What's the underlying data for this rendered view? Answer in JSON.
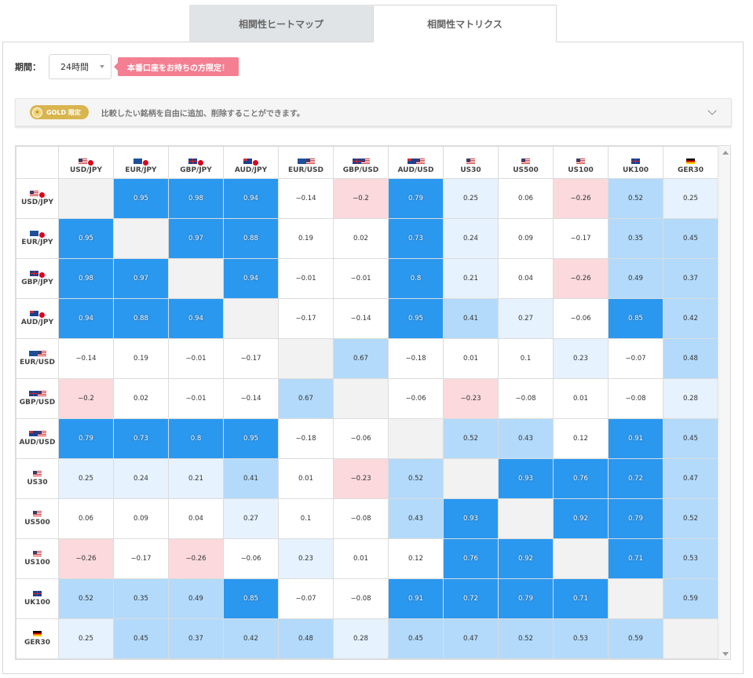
{
  "tabs": [
    {
      "label": "相関性ヒートマップ",
      "active": false
    },
    {
      "label": "相関性マトリクス",
      "active": true
    }
  ],
  "period": {
    "label": "期間：",
    "value": "24時間"
  },
  "live_badge": "本番口座をお持ちの方限定！",
  "gold_bar": {
    "badge": "GOLD 限定",
    "text": "比較したい銘柄を自由に追加、削除することができます。"
  },
  "colors": {
    "strong": "#2b98f0",
    "mid": "#b3dafb",
    "light": "#e6f2fd",
    "negative": "#fbd9dc",
    "diagonal": "#f2f2f2"
  },
  "instruments": [
    {
      "label": "USD/JPY",
      "flag": "us-jp"
    },
    {
      "label": "EUR/JPY",
      "flag": "eu-jp"
    },
    {
      "label": "GBP/JPY",
      "flag": "uk-jp"
    },
    {
      "label": "AUD/JPY",
      "flag": "au-jp"
    },
    {
      "label": "EUR/USD",
      "flag": "eu-us"
    },
    {
      "label": "GBP/USD",
      "flag": "uk-us"
    },
    {
      "label": "AUD/USD",
      "flag": "au-us"
    },
    {
      "label": "US30",
      "flag": "us-index"
    },
    {
      "label": "US500",
      "flag": "us-index"
    },
    {
      "label": "US100",
      "flag": "us-index"
    },
    {
      "label": "UK100",
      "flag": "uk-index"
    },
    {
      "label": "GER30",
      "flag": "de-index"
    }
  ],
  "matrix": [
    [
      null,
      "0.95",
      "0.98",
      "0.94",
      "−0.14",
      "−0.2",
      "0.79",
      "0.25",
      "0.06",
      "−0.26",
      "0.52",
      "0.25"
    ],
    [
      "0.95",
      null,
      "0.97",
      "0.88",
      "0.19",
      "0.02",
      "0.73",
      "0.24",
      "0.09",
      "−0.17",
      "0.35",
      "0.45"
    ],
    [
      "0.98",
      "0.97",
      null,
      "0.94",
      "−0.01",
      "−0.01",
      "0.8",
      "0.21",
      "0.04",
      "−0.26",
      "0.49",
      "0.37"
    ],
    [
      "0.94",
      "0.88",
      "0.94",
      null,
      "−0.17",
      "−0.14",
      "0.95",
      "0.41",
      "0.27",
      "−0.06",
      "0.85",
      "0.42"
    ],
    [
      "−0.14",
      "0.19",
      "−0.01",
      "−0.17",
      null,
      "0.67",
      "−0.18",
      "0.01",
      "0.1",
      "0.23",
      "−0.07",
      "0.48"
    ],
    [
      "−0.2",
      "0.02",
      "−0.01",
      "−0.14",
      "0.67",
      null,
      "−0.06",
      "−0.23",
      "−0.08",
      "0.01",
      "−0.08",
      "0.28"
    ],
    [
      "0.79",
      "0.73",
      "0.8",
      "0.95",
      "−0.18",
      "−0.06",
      null,
      "0.52",
      "0.43",
      "0.12",
      "0.91",
      "0.45"
    ],
    [
      "0.25",
      "0.24",
      "0.21",
      "0.41",
      "0.01",
      "−0.23",
      "0.52",
      null,
      "0.93",
      "0.76",
      "0.72",
      "0.47"
    ],
    [
      "0.06",
      "0.09",
      "0.04",
      "0.27",
      "0.1",
      "−0.08",
      "0.43",
      "0.93",
      null,
      "0.92",
      "0.79",
      "0.52"
    ],
    [
      "−0.26",
      "−0.17",
      "−0.26",
      "−0.06",
      "0.23",
      "0.01",
      "0.12",
      "0.76",
      "0.92",
      null,
      "0.71",
      "0.53"
    ],
    [
      "0.52",
      "0.35",
      "0.49",
      "0.85",
      "−0.07",
      "−0.08",
      "0.91",
      "0.72",
      "0.79",
      "0.71",
      null,
      "0.59"
    ],
    [
      "0.25",
      "0.45",
      "0.37",
      "0.42",
      "0.48",
      "0.28",
      "0.45",
      "0.47",
      "0.52",
      "0.53",
      "0.59",
      null
    ]
  ]
}
